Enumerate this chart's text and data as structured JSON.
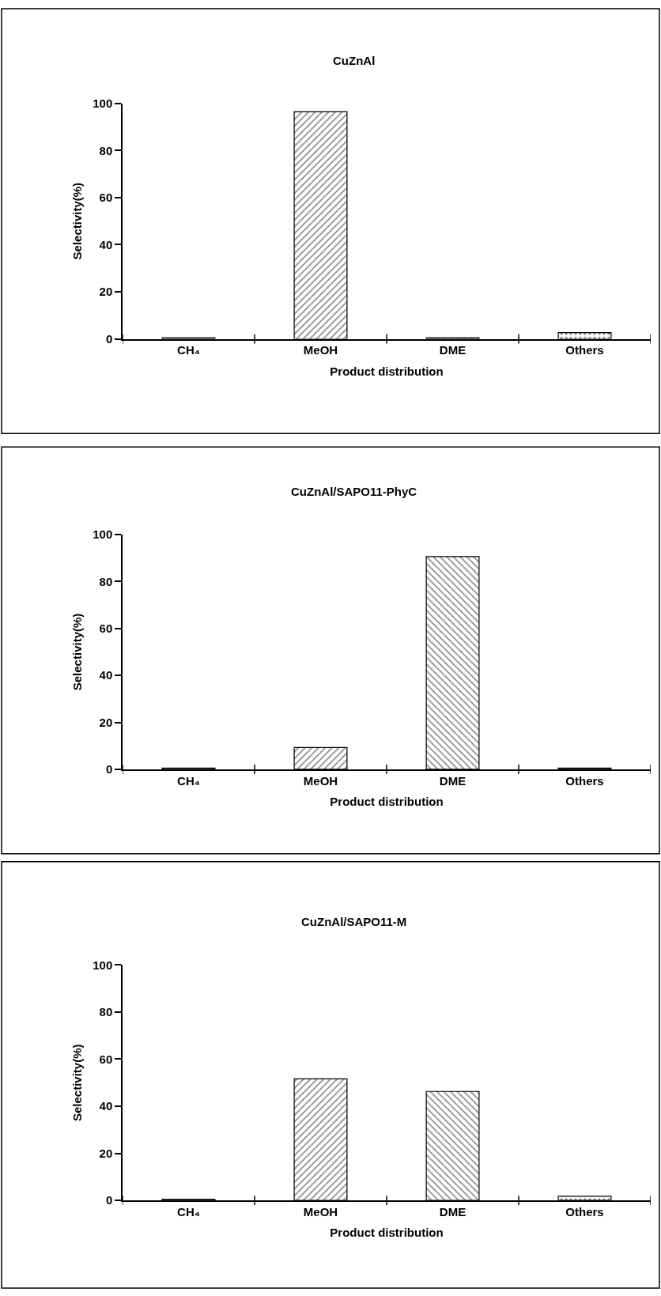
{
  "chart_data": [
    {
      "type": "bar",
      "title": "CuZnAl",
      "xlabel": "Product distribution",
      "ylabel": "Selectivity(%)",
      "categories": [
        "CH₄",
        "MeOH",
        "DME",
        "Others"
      ],
      "values": [
        0.5,
        96.4,
        0.5,
        2.7
      ],
      "ylim": [
        0,
        100
      ],
      "yticks": [
        0,
        20,
        40,
        60,
        80,
        100
      ],
      "grid": false
    },
    {
      "type": "bar",
      "title": "CuZnAl/SAPO11-PhyC",
      "xlabel": "Product distribution",
      "ylabel": "Selectivity(%)",
      "categories": [
        "CH₄",
        "MeOH",
        "DME",
        "Others"
      ],
      "values": [
        0.5,
        9.3,
        90.6,
        0.5
      ],
      "ylim": [
        0,
        100
      ],
      "yticks": [
        0,
        20,
        40,
        60,
        80,
        100
      ],
      "grid": false
    },
    {
      "type": "bar",
      "title": "CuZnAl/SAPO11-M",
      "xlabel": "Product distribution",
      "ylabel": "Selectivity(%)",
      "categories": [
        "CH₄",
        "MeOH",
        "DME",
        "Others"
      ],
      "values": [
        0.5,
        51.6,
        46.3,
        1.8
      ],
      "ylim": [
        0,
        100
      ],
      "yticks": [
        0,
        20,
        40,
        60,
        80,
        100
      ],
      "grid": false
    }
  ]
}
